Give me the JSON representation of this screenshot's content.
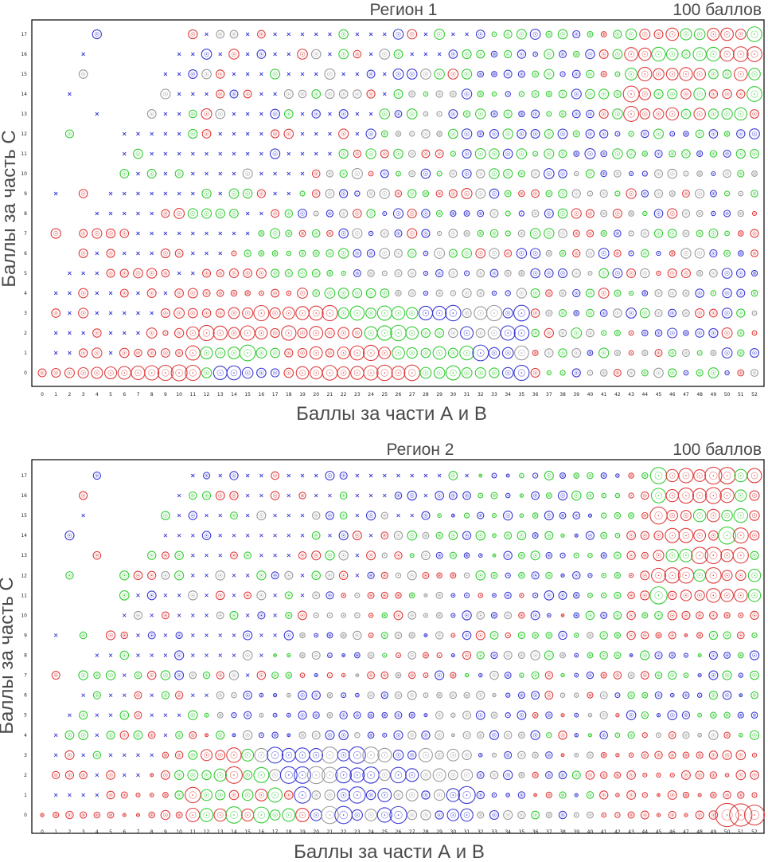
{
  "colors": {
    "red": "#e03c3c",
    "green": "#33cc33",
    "blue": "#3a3ad4",
    "gray": "#9a9a9a",
    "frame": "#000000",
    "text": "#4a4a4a"
  },
  "chart_data": [
    {
      "type": "scatter",
      "title": "Регион 1",
      "subtitle": "100 баллов",
      "xlabel": "Баллы за части А и В",
      "ylabel": "Баллы за часть С",
      "xlim": [
        0,
        52
      ],
      "ylim": [
        0,
        17
      ],
      "x_ticks": [
        0,
        1,
        2,
        3,
        4,
        5,
        6,
        7,
        8,
        9,
        10,
        11,
        12,
        13,
        14,
        15,
        16,
        17,
        18,
        19,
        20,
        21,
        22,
        23,
        24,
        25,
        26,
        27,
        28,
        29,
        30,
        31,
        32,
        33,
        34,
        35,
        36,
        37,
        38,
        39,
        40,
        41,
        42,
        43,
        44,
        45,
        46,
        47,
        48,
        49,
        50,
        51,
        52
      ],
      "y_ticks": [
        0,
        1,
        2,
        3,
        4,
        5,
        6,
        7,
        8,
        9,
        10,
        11,
        12,
        13,
        14,
        15,
        16,
        17
      ],
      "grid": false,
      "marker_encoding": "bubble size = number of participants; color = category (red, green, blue, gray); small cross = single participant"
    },
    {
      "type": "scatter",
      "title": "Регион 2",
      "subtitle": "100 баллов",
      "xlabel": "Баллы за части А и В",
      "ylabel": "Баллы за часть С",
      "xlim": [
        0,
        52
      ],
      "ylim": [
        0,
        17
      ],
      "x_ticks": [
        0,
        1,
        2,
        3,
        4,
        5,
        6,
        7,
        8,
        9,
        10,
        11,
        12,
        13,
        14,
        15,
        16,
        17,
        18,
        19,
        20,
        21,
        22,
        23,
        24,
        25,
        26,
        27,
        28,
        29,
        30,
        31,
        32,
        33,
        34,
        35,
        36,
        37,
        38,
        39,
        40,
        41,
        42,
        43,
        44,
        45,
        46,
        47,
        48,
        49,
        50,
        51,
        52
      ],
      "y_ticks": [
        0,
        1,
        2,
        3,
        4,
        5,
        6,
        7,
        8,
        9,
        10,
        11,
        12,
        13,
        14,
        15,
        16,
        17
      ],
      "grid": false,
      "marker_encoding": "bubble size = number of participants; color = category (red, green, blue, gray); small cross = single participant"
    }
  ]
}
